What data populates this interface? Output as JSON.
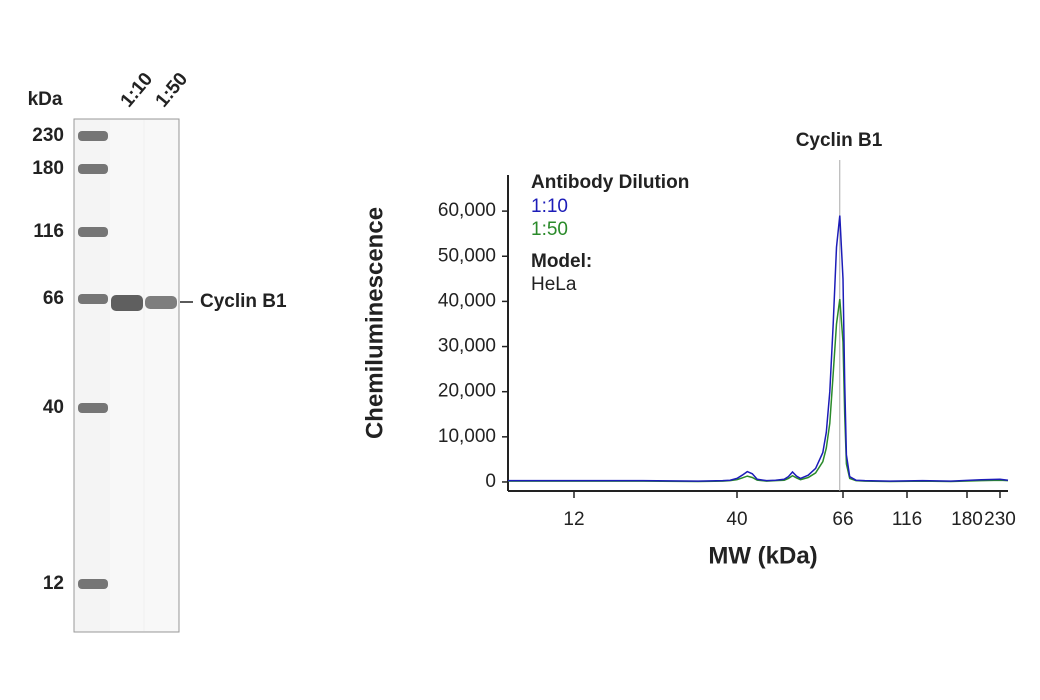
{
  "blot": {
    "unit": "kDa",
    "lanes": [
      "1:10",
      "1:50"
    ],
    "markers": [
      "230",
      "180",
      "116",
      "66",
      "40",
      "12"
    ],
    "band_label": "Cyclin B1"
  },
  "chart_data": {
    "type": "line",
    "title": "Cyclin B1",
    "x_label": "MW (kDa)",
    "y_label": "Chemiluminescence",
    "legend_title": "Antibody Dilution",
    "model_label": "Model:",
    "model": "HeLa",
    "x": [
      7.4,
      20,
      30,
      36,
      38,
      40,
      41,
      42,
      43,
      44,
      46,
      48,
      50,
      51,
      52,
      53,
      54,
      56,
      58,
      60,
      61,
      62,
      63,
      64,
      65,
      66,
      67,
      68,
      70,
      74,
      80,
      100,
      130,
      160,
      200,
      230,
      244
    ],
    "series": [
      {
        "name": "1:10",
        "color": "#1c1cb8",
        "values": [
          300,
          300,
          200,
          300,
          400,
          800,
          1500,
          2300,
          1800,
          600,
          300,
          400,
          600,
          1200,
          2200,
          1300,
          800,
          1500,
          3000,
          6500,
          11000,
          20000,
          35000,
          52000,
          59000,
          45000,
          22000,
          6000,
          1200,
          400,
          300,
          200,
          300,
          200,
          500,
          600,
          400
        ]
      },
      {
        "name": "1:50",
        "color": "#2a8a2a",
        "values": [
          200,
          200,
          100,
          200,
          300,
          500,
          900,
          1300,
          1000,
          400,
          200,
          300,
          400,
          800,
          1400,
          900,
          500,
          1000,
          2000,
          4500,
          7500,
          13000,
          24000,
          35000,
          40500,
          31000,
          15000,
          4000,
          800,
          300,
          200,
          100,
          200,
          100,
          300,
          400,
          300
        ]
      }
    ],
    "annotation": {
      "text": "Cyclin B1",
      "x": 65
    },
    "xlim": [
      7.4,
      244
    ],
    "xticks": [
      12,
      40,
      66,
      116,
      180,
      230
    ],
    "ylim": [
      -2000,
      68000
    ],
    "yticks": [
      0,
      {
        "value": 10000,
        "label": "10,000"
      },
      {
        "value": 20000,
        "label": "20,000"
      },
      {
        "value": 30000,
        "label": "30,000"
      },
      {
        "value": 40000,
        "label": "40,000"
      },
      {
        "value": 50000,
        "label": "50,000"
      },
      {
        "value": 60000,
        "label": "60,000"
      }
    ],
    "grid": false
  }
}
